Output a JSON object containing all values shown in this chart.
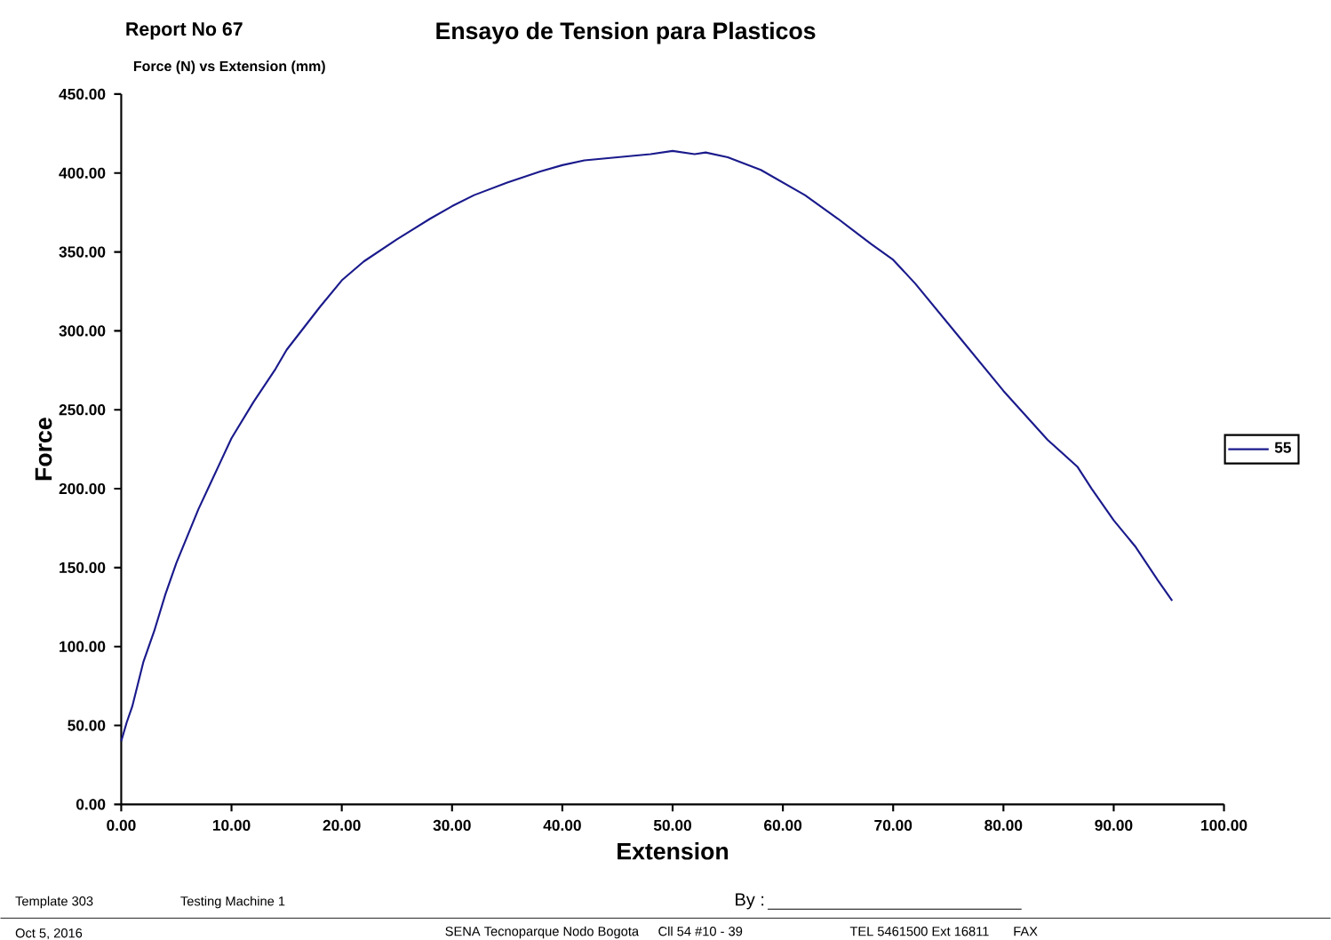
{
  "chart_data": {
    "type": "line",
    "title": "Ensayo de Tension para Plasticos",
    "subtitle": "Force (N) vs Extension (mm)",
    "xlabel": "Extension",
    "ylabel": "Force",
    "annotations": [
      "Report No    67",
      "Template 303",
      "Testing Machine 1",
      "By :",
      "Oct 5, 2016",
      "SENA Tecnoparque Nodo Bogota",
      "Cll 54 #10 - 39",
      "TEL 5461500 Ext 16811",
      "FAX"
    ],
    "series": [
      {
        "name": "55",
        "color": "#1a1a8c",
        "x": [
          0,
          0.5,
          1,
          2,
          3,
          4,
          5,
          6,
          7,
          8,
          9,
          10,
          12,
          14,
          15,
          16,
          18,
          20,
          22,
          25,
          28,
          30,
          32,
          35,
          38,
          40,
          42,
          45,
          48,
          50,
          52,
          53,
          55,
          58,
          60,
          62,
          65,
          68,
          70,
          72,
          76,
          80,
          84,
          86.7,
          88,
          90,
          92,
          94,
          95.3
        ],
        "values": [
          40,
          52,
          62,
          90,
          110,
          133,
          153,
          170,
          187,
          202,
          217,
          232,
          255,
          276,
          288,
          297,
          315,
          332,
          344,
          358,
          371,
          379,
          386,
          394,
          401,
          405,
          408,
          410,
          412,
          414,
          412,
          413,
          410,
          402,
          394,
          386,
          371,
          355,
          345,
          330,
          296,
          262,
          231,
          214,
          200,
          180,
          163,
          142,
          129
        ]
      }
    ],
    "xlim": [
      0,
      100
    ],
    "ylim": [
      0,
      450
    ],
    "xticks": [
      {
        "value": 0,
        "label": "0.00"
      },
      {
        "value": 10,
        "label": "10.00"
      },
      {
        "value": 20,
        "label": "20.00"
      },
      {
        "value": 30,
        "label": "30.00"
      },
      {
        "value": 40,
        "label": "40.00"
      },
      {
        "value": 50,
        "label": "50.00"
      },
      {
        "value": 60,
        "label": "60.00"
      },
      {
        "value": 70,
        "label": "70.00"
      },
      {
        "value": 80,
        "label": "80.00"
      },
      {
        "value": 90,
        "label": "90.00"
      },
      {
        "value": 100,
        "label": "100.00"
      }
    ],
    "yticks": [
      {
        "value": 0,
        "label": "0.00"
      },
      {
        "value": 50,
        "label": "50.00"
      },
      {
        "value": 100,
        "label": "100.00"
      },
      {
        "value": 150,
        "label": "150.00"
      },
      {
        "value": 200,
        "label": "200.00"
      },
      {
        "value": 250,
        "label": "250.00"
      },
      {
        "value": 300,
        "label": "300.00"
      },
      {
        "value": 350,
        "label": "350.00"
      },
      {
        "value": 400,
        "label": "400.00"
      },
      {
        "value": 450,
        "label": "450.00"
      }
    ],
    "grid": false,
    "legend": "right",
    "marker": "none",
    "line_style": "solid"
  }
}
